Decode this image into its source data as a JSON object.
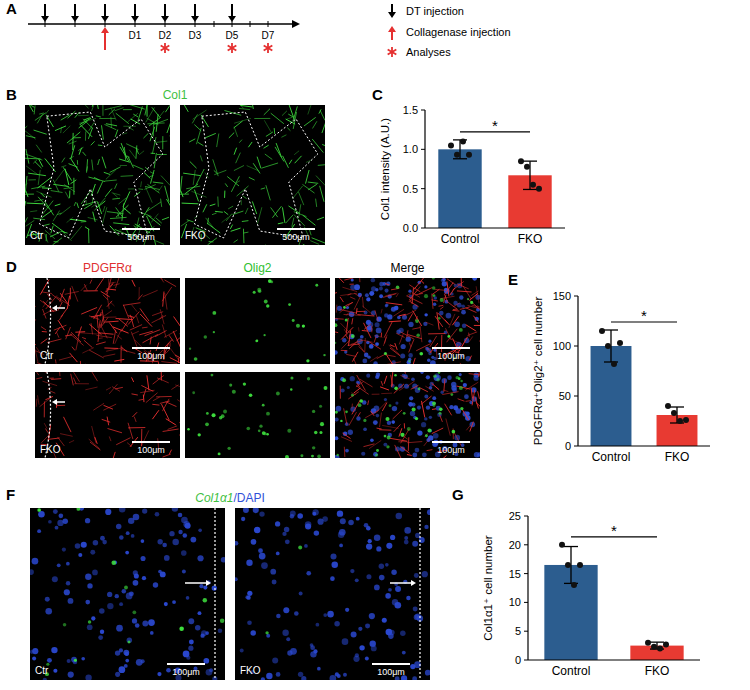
{
  "panel_labels": [
    "A",
    "B",
    "C",
    "D",
    "E",
    "F",
    "G"
  ],
  "timeline": {
    "events": [
      {
        "label": null,
        "dt": true,
        "collagenase": false,
        "analysis": false
      },
      {
        "label": null,
        "dt": true,
        "collagenase": false,
        "analysis": false
      },
      {
        "label": null,
        "dt": true,
        "collagenase": true,
        "analysis": false
      },
      {
        "label": "D1",
        "dt": true,
        "collagenase": false,
        "analysis": false
      },
      {
        "label": "D2",
        "dt": true,
        "collagenase": false,
        "analysis": true
      },
      {
        "label": "D3",
        "dt": true,
        "collagenase": false,
        "analysis": false
      },
      {
        "label": null,
        "dt": false,
        "collagenase": false,
        "analysis": false
      },
      {
        "label": "D5",
        "dt": true,
        "collagenase": false,
        "analysis": true
      },
      {
        "label": null,
        "dt": false,
        "collagenase": false,
        "analysis": false
      },
      {
        "label": "D7",
        "dt": false,
        "collagenase": false,
        "analysis": true
      }
    ],
    "legend": {
      "dt": "DT injection",
      "collagenase": "Collagenase injection",
      "analysis": "Analyses"
    }
  },
  "image_panels": [
    {
      "title": "Col1",
      "labels": [
        "Ctr",
        "FKO"
      ],
      "scale_bar": "500μm"
    },
    {
      "titles": [
        "PDGFRα",
        "Olig2",
        "Merge"
      ],
      "labels": [
        "Ctr",
        "FKO"
      ],
      "scale_bar": "100μm"
    },
    {
      "title_parts": [
        "Col1α1",
        "/DAPI"
      ],
      "labels": [
        "Ctr",
        "FKO"
      ],
      "scale_bar": "100μm"
    }
  ],
  "chart_data": [
    {
      "type": "bar",
      "ylabel": "Col1 intensity (A.U.)",
      "categories": [
        "Control",
        "FKO"
      ],
      "values": [
        1.0,
        0.67
      ],
      "errors": [
        0.12,
        0.18
      ],
      "points": [
        [
          1.05,
          0.93,
          1.1,
          0.93
        ],
        [
          0.85,
          0.78,
          0.55,
          0.5
        ]
      ],
      "colors": [
        "#2c5d8f",
        "#e83a32"
      ],
      "ylim": [
        0,
        1.5
      ],
      "yticks": [
        {
          "value": 0,
          "label": "0.0"
        },
        {
          "value": 0.5,
          "label": "0.5"
        },
        {
          "value": 1,
          "label": "1.0"
        },
        {
          "value": 1.5,
          "label": "1.5"
        }
      ],
      "grid": false,
      "annotation": "*"
    },
    {
      "type": "bar",
      "ylabel": "PDGFRα⁺Olig2⁺ cell number",
      "categories": [
        "Control",
        "FKO"
      ],
      "values": [
        100,
        31
      ],
      "errors": [
        16,
        8
      ],
      "points": [
        [
          115,
          100,
          82,
          103
        ],
        [
          40,
          33,
          25,
          26
        ]
      ],
      "colors": [
        "#2c5d8f",
        "#e83a32"
      ],
      "ylim": [
        0,
        150
      ],
      "yticks": [
        0,
        50,
        100,
        150
      ],
      "grid": false,
      "annotation": "*"
    },
    {
      "type": "bar",
      "ylabel": "Col1α1⁺ cell number",
      "categories": [
        "Control",
        "FKO"
      ],
      "values": [
        16.5,
        2.5
      ],
      "errors": [
        3.2,
        0.6
      ],
      "points": [
        [
          20,
          16.5,
          13,
          16.5
        ],
        [
          3,
          2.3,
          2,
          2.7
        ]
      ],
      "colors": [
        "#2c5d8f",
        "#e83a32"
      ],
      "ylim": [
        0,
        25
      ],
      "yticks": [
        0,
        5,
        10,
        15,
        20,
        25
      ],
      "grid": false,
      "annotation": "*"
    }
  ]
}
